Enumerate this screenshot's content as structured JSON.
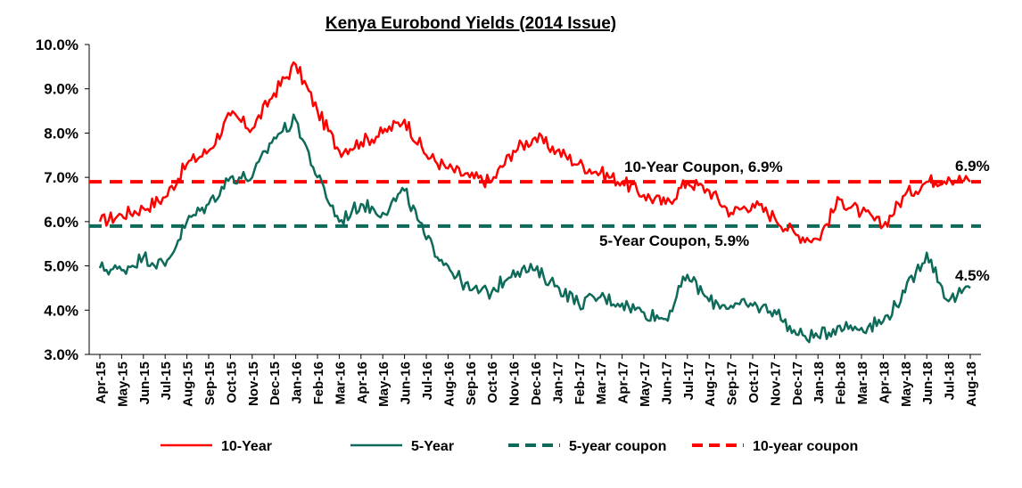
{
  "chart_data": {
    "type": "line",
    "title": "Kenya Eurobond Yields (2014 Issue)",
    "xlabel": "",
    "ylabel": "",
    "ylim": [
      3.0,
      10.0
    ],
    "y_ticks": [
      "3.0%",
      "4.0%",
      "5.0%",
      "6.0%",
      "7.0%",
      "8.0%",
      "9.0%",
      "10.0%"
    ],
    "categories": [
      "Apr-15",
      "May-15",
      "Jun-15",
      "Jul-15",
      "Aug-15",
      "Sep-15",
      "Oct-15",
      "Nov-15",
      "Dec-15",
      "Jan-16",
      "Feb-16",
      "Mar-16",
      "Apr-16",
      "May-16",
      "Jun-16",
      "Jul-16",
      "Aug-16",
      "Sep-16",
      "Oct-16",
      "Nov-16",
      "Dec-16",
      "Jan-17",
      "Feb-17",
      "Mar-17",
      "Apr-17",
      "May-17",
      "Jun-17",
      "Jul-17",
      "Aug-17",
      "Sep-17",
      "Oct-17",
      "Nov-17",
      "Dec-17",
      "Jan-18",
      "Feb-18",
      "Mar-18",
      "Apr-18",
      "May-18",
      "Jun-18",
      "Jul-18",
      "Aug-18"
    ],
    "grid": false,
    "legend_position": "bottom",
    "series": [
      {
        "name": "10-Year",
        "color": "#ff0000",
        "style": "solid",
        "values": [
          6.0,
          6.15,
          6.3,
          6.55,
          7.3,
          7.6,
          8.4,
          8.1,
          8.9,
          9.55,
          8.5,
          7.6,
          7.8,
          8.0,
          8.3,
          7.5,
          7.2,
          7.0,
          6.9,
          7.6,
          7.9,
          7.6,
          7.3,
          7.1,
          6.9,
          6.6,
          6.4,
          6.9,
          6.7,
          6.2,
          6.4,
          6.1,
          5.7,
          5.6,
          6.5,
          6.2,
          5.9,
          6.6,
          6.9,
          7.0,
          6.9
        ]
      },
      {
        "name": "5-Year",
        "color": "#0e6b5a",
        "style": "solid",
        "values": [
          4.95,
          4.9,
          5.2,
          5.0,
          6.0,
          6.4,
          7.0,
          7.0,
          7.9,
          8.3,
          7.0,
          6.0,
          6.4,
          6.2,
          6.7,
          5.6,
          5.0,
          4.45,
          4.4,
          4.9,
          4.9,
          4.55,
          4.15,
          4.3,
          4.15,
          3.95,
          3.8,
          4.8,
          4.2,
          4.1,
          4.1,
          4.0,
          3.45,
          3.4,
          3.65,
          3.6,
          3.75,
          4.4,
          5.3,
          4.2,
          4.5
        ]
      },
      {
        "name": "5-year coupon",
        "color": "#0e6b5a",
        "style": "dashed",
        "value": 5.9
      },
      {
        "name": "10-year coupon",
        "color": "#ff0000",
        "style": "dashed",
        "value": 6.9
      }
    ],
    "annotations": [
      {
        "text": "10-Year Coupon,  6.9%"
      },
      {
        "text": "5-Year Coupon,  5.9%"
      },
      {
        "text": "6.9%"
      },
      {
        "text": "4.5%"
      }
    ]
  }
}
